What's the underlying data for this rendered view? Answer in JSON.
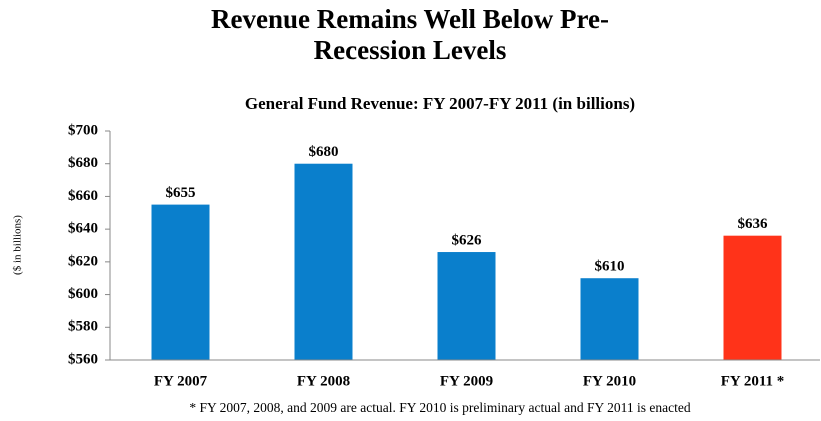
{
  "chart_data": {
    "type": "bar",
    "title": "Revenue Remains Well Below Pre-Recession Levels",
    "subtitle": "General Fund Revenue: FY 2007-FY 2011 (in billions)",
    "y_label": "($ in billions)",
    "footnote": "* FY 2007, 2008, and 2009 are actual.  FY 2010 is preliminary actual and FY 2011 is enacted",
    "categories": [
      "FY 2007",
      "FY 2008",
      "FY 2009",
      "FY 2010",
      "FY 2011 *"
    ],
    "values": [
      655,
      680,
      626,
      610,
      636
    ],
    "value_labels": [
      "$655",
      "$680",
      "$626",
      "$610",
      "$636"
    ],
    "colors": [
      "#0a7fcc",
      "#0a7fcc",
      "#0a7fcc",
      "#0a7fcc",
      "#ff3319"
    ],
    "ylim": [
      560,
      700
    ],
    "yticks": [
      {
        "value": 560,
        "label": "$560"
      },
      {
        "value": 580,
        "label": "$580"
      },
      {
        "value": 600,
        "label": "$600"
      },
      {
        "value": 620,
        "label": "$620"
      },
      {
        "value": 640,
        "label": "$640"
      },
      {
        "value": 660,
        "label": "$660"
      },
      {
        "value": 680,
        "label": "$680"
      },
      {
        "value": 700,
        "label": "$700"
      }
    ],
    "grid": false
  }
}
